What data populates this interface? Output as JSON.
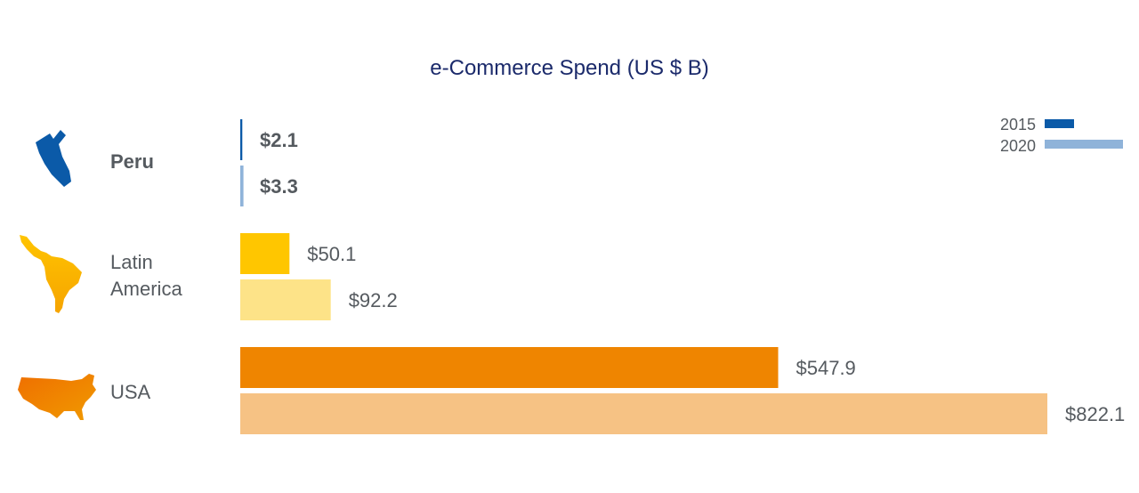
{
  "chart_data": {
    "type": "bar",
    "orientation": "horizontal",
    "title": "e-Commerce Spend (US $ B)",
    "xlabel": "",
    "ylabel": "",
    "xlim": [
      0,
      822.1
    ],
    "grid": false,
    "legend_position": "top-right",
    "categories": [
      "Peru",
      "Latin America",
      "USA"
    ],
    "series": [
      {
        "name": "2015",
        "values": [
          2.1,
          50.1,
          547.9
        ],
        "labels": [
          "$2.1",
          "$50.1",
          "$547.9"
        ]
      },
      {
        "name": "2020",
        "values": [
          3.3,
          92.2,
          822.1
        ],
        "labels": [
          "$3.3",
          "$92.2",
          "$822.1"
        ]
      }
    ],
    "category_colors": [
      {
        "2015": "#0b5aa8",
        "2020": "#8fb3d9"
      },
      {
        "2015": "#ffc600",
        "2020": "#fde388"
      },
      {
        "2015": "#ef8500",
        "2020": "#f6c284"
      }
    ],
    "legend_colors": {
      "2015": "#0b5aa8",
      "2020": "#8fb3d9"
    },
    "icons": [
      "peru-map-icon",
      "latin-america-map-icon",
      "usa-map-icon"
    ]
  }
}
